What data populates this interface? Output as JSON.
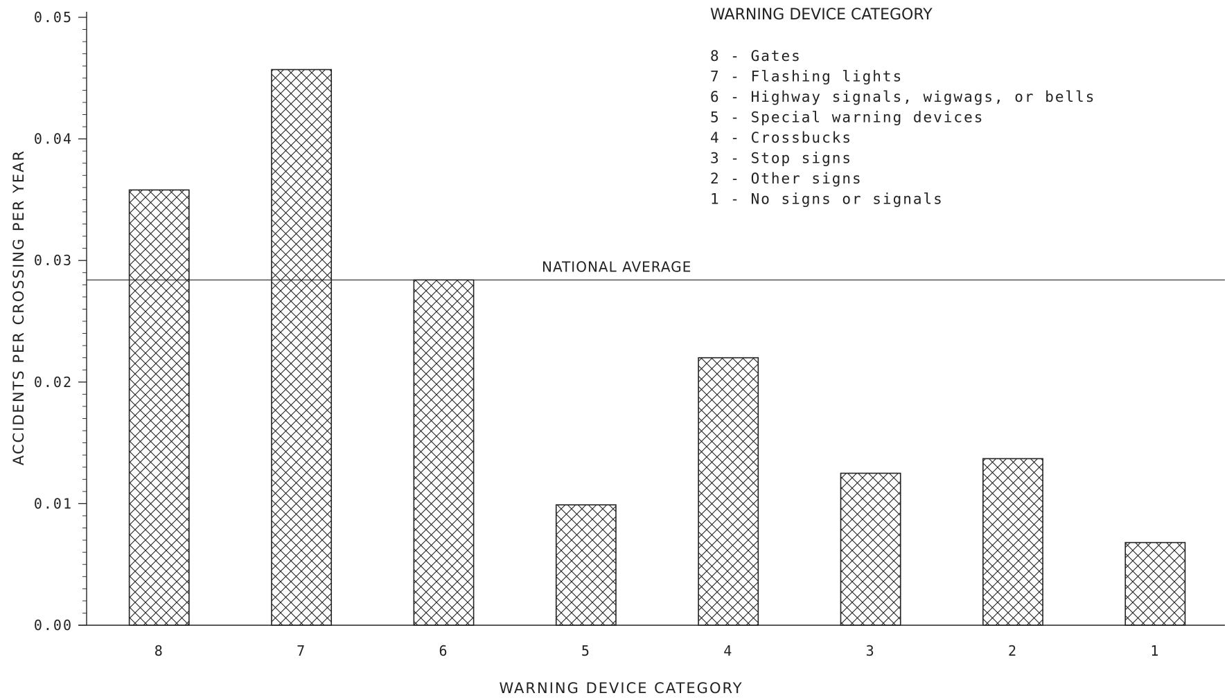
{
  "chart_data": {
    "type": "bar",
    "categories": [
      "8",
      "7",
      "6",
      "5",
      "4",
      "3",
      "2",
      "1"
    ],
    "values": [
      0.0358,
      0.0457,
      0.0284,
      0.0099,
      0.022,
      0.0125,
      0.0137,
      0.0068
    ],
    "xlabel": "WARNING DEVICE CATEGORY",
    "ylabel": "ACCIDENTS PER CROSSING PER YEAR",
    "ylim": [
      0.0,
      0.05
    ],
    "yticks": [
      "0.00",
      "0.01",
      "0.02",
      "0.03",
      "0.04",
      "0.05"
    ],
    "reference_line": {
      "label": "NATIONAL AVERAGE",
      "value": 0.0284
    },
    "legend": {
      "title": "WARNING DEVICE CATEGORY",
      "items": [
        "8 - Gates",
        "7 - Flashing lights",
        "6 - Highway signals, wigwags, or bells",
        "5 - Special warning devices",
        "4 - Crossbucks",
        "3 - Stop signs",
        "2 - Other signs",
        "1 - No signs or signals"
      ],
      "placement": "top-right"
    },
    "bar_pattern": "crosshatch",
    "colors": {
      "ink": "#222222",
      "background": "#ffffff"
    },
    "grid": false
  }
}
